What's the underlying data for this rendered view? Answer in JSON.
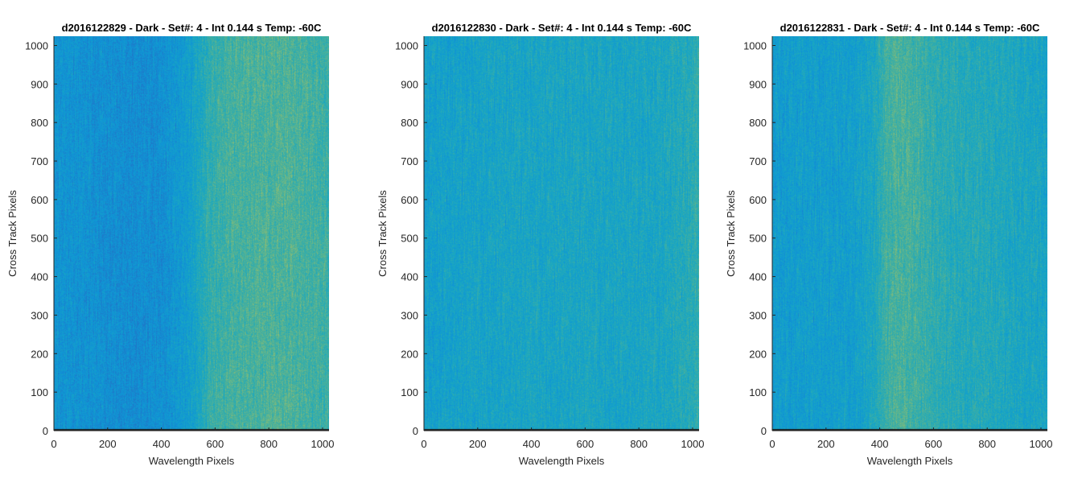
{
  "chart_data": [
    {
      "type": "heatmap",
      "title": "d2016122829 - Dark - Set#: 4 - Int 0.144 s Temp: -60C",
      "xlabel": "Wavelength Pixels",
      "ylabel": "Cross Track Pixels",
      "xlim": [
        0,
        1024
      ],
      "ylim": [
        0,
        1024
      ],
      "xticks": [
        0,
        200,
        400,
        600,
        800,
        1000
      ],
      "yticks": [
        0,
        100,
        200,
        300,
        400,
        500,
        600,
        700,
        800,
        900,
        1000
      ],
      "colormap": [
        "#1f78c8",
        "#0f95d6",
        "#19a7c2",
        "#47b09c",
        "#8fbd72",
        "#cfc24a"
      ],
      "column_profile": {
        "x": [
          0,
          100,
          200,
          300,
          400,
          500,
          550,
          580,
          650,
          750,
          850,
          950,
          1024
        ],
        "level": [
          0.22,
          0.2,
          0.17,
          0.15,
          0.17,
          0.3,
          0.42,
          0.52,
          0.58,
          0.6,
          0.62,
          0.58,
          0.55
        ]
      },
      "bottom_row_level": 0.0
    },
    {
      "type": "heatmap",
      "title": "d2016122830 - Dark - Set#: 4 - Int 0.144 s Temp: -60C",
      "xlabel": "Wavelength Pixels",
      "ylabel": "Cross Track Pixels",
      "xlim": [
        0,
        1024
      ],
      "ylim": [
        0,
        1024
      ],
      "xticks": [
        0,
        200,
        400,
        600,
        800,
        1000
      ],
      "yticks": [
        0,
        100,
        200,
        300,
        400,
        500,
        600,
        700,
        800,
        900,
        1000
      ],
      "colormap": [
        "#1f78c8",
        "#0f95d6",
        "#19a7c2",
        "#47b09c",
        "#8fbd72",
        "#cfc24a"
      ],
      "column_profile": {
        "x": [
          0,
          100,
          200,
          300,
          400,
          500,
          600,
          700,
          800,
          900,
          1000,
          1024
        ],
        "level": [
          0.32,
          0.34,
          0.36,
          0.37,
          0.38,
          0.38,
          0.39,
          0.38,
          0.38,
          0.4,
          0.47,
          0.52
        ]
      },
      "bottom_row_level": 0.0
    },
    {
      "type": "heatmap",
      "title": "d2016122831 - Dark - Set#: 4 - Int 0.144 s Temp: -60C",
      "xlabel": "Wavelength Pixels",
      "ylabel": "Cross Track Pixels",
      "xlim": [
        0,
        1024
      ],
      "ylim": [
        0,
        1024
      ],
      "xticks": [
        0,
        200,
        400,
        600,
        800,
        1000
      ],
      "yticks": [
        0,
        100,
        200,
        300,
        400,
        500,
        600,
        700,
        800,
        900,
        1000
      ],
      "colormap": [
        "#1f78c8",
        "#0f95d6",
        "#19a7c2",
        "#47b09c",
        "#8fbd72",
        "#cfc24a"
      ],
      "column_profile": {
        "x": [
          0,
          100,
          200,
          300,
          380,
          420,
          460,
          500,
          560,
          620,
          700,
          800,
          900,
          1000,
          1024
        ],
        "level": [
          0.28,
          0.3,
          0.3,
          0.31,
          0.4,
          0.55,
          0.6,
          0.6,
          0.54,
          0.48,
          0.45,
          0.44,
          0.4,
          0.38,
          0.36
        ],
        "note_band": null
      },
      "bottom_row_level": 0.0
    }
  ]
}
